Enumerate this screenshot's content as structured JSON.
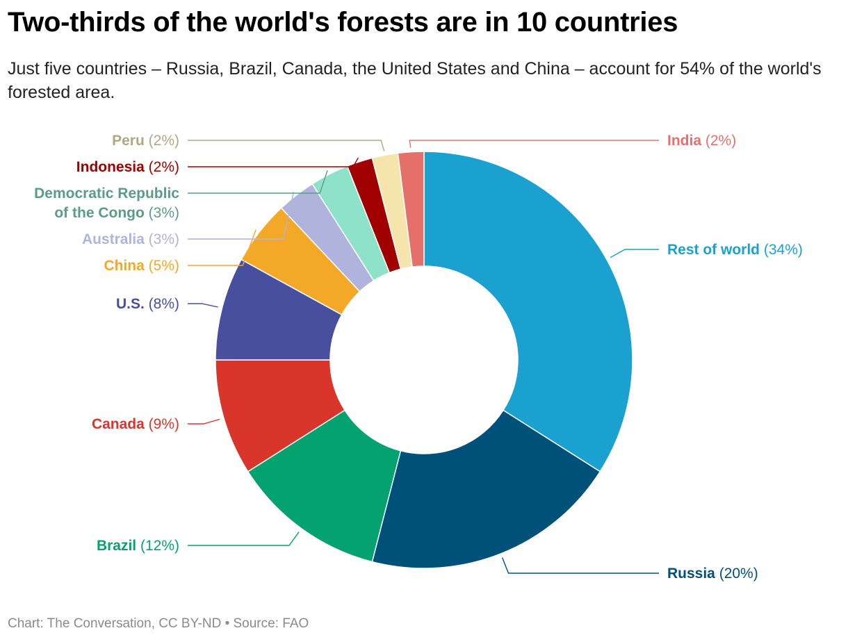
{
  "header": {
    "title": "Two-thirds of the world's forests are in 10 countries",
    "subtitle": "Just five countries – Russia, Brazil, Canada, the United States and China – account for 54% of the world's forested area."
  },
  "footer": {
    "credit": "Chart: The Conversation, CC BY-ND • Source: FAO"
  },
  "chart_data": {
    "type": "pie",
    "donut": true,
    "legend": "none",
    "slices": [
      {
        "label": "Rest of world",
        "value": 34,
        "display": "(34%)",
        "color": "#1aa1cf"
      },
      {
        "label": "Russia",
        "value": 20,
        "display": "(20%)",
        "color": "#00517a"
      },
      {
        "label": "Brazil",
        "value": 12,
        "display": "(12%)",
        "color": "#04a26e"
      },
      {
        "label": "Canada",
        "value": 9,
        "display": "(9%)",
        "color": "#d9352a"
      },
      {
        "label": "U.S.",
        "value": 8,
        "display": "(8%)",
        "color": "#474f9e"
      },
      {
        "label": "China",
        "value": 5,
        "display": "(5%)",
        "color": "#f4a827"
      },
      {
        "label": "Australia",
        "value": 3,
        "display": "(3%)",
        "color": "#b0b3db"
      },
      {
        "label": [
          "Democratic Republic",
          "of the Congo"
        ],
        "value": 3,
        "display": "(3%)",
        "color": "#8ee2c9",
        "label_color": "#5a9c86"
      },
      {
        "label": "Indonesia",
        "value": 2,
        "display": "(2%)",
        "color": "#a00000"
      },
      {
        "label": "Peru",
        "value": 2,
        "display": "(2%)",
        "color": "#f5e5ac",
        "label_color": "#b0a784"
      },
      {
        "label": "India",
        "value": 2,
        "display": "(2%)",
        "color": "#e5706b"
      }
    ]
  }
}
